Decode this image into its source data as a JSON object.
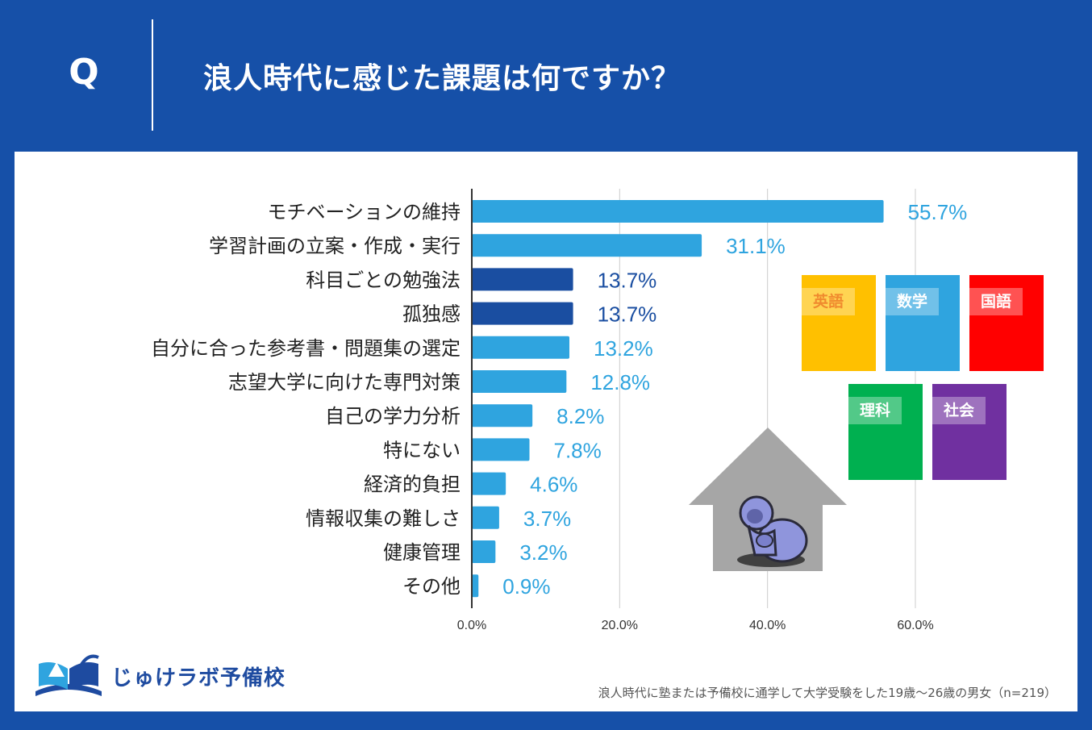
{
  "header": {
    "q_label": "Q",
    "question": "浪人時代に感じた課題は何ですか？"
  },
  "colors": {
    "background": "#1650a8",
    "bar_light": "#2fa4df",
    "bar_dark": "#1a4ea1",
    "label_light": "#2fa4df",
    "label_dark": "#1a4ea1"
  },
  "chart_data": {
    "type": "bar",
    "orientation": "horizontal",
    "categories": [
      "モチベーションの維持",
      "学習計画の立案・作成・実行",
      "科目ごとの勉強法",
      "孤独感",
      "自分に合った参考書・問題集の選定",
      "志望大学に向けた専門対策",
      "自己の学力分析",
      "特にない",
      "経済的負担",
      "情報収集の難しさ",
      "健康管理",
      "その他"
    ],
    "values": [
      55.7,
      31.1,
      13.7,
      13.7,
      13.2,
      12.8,
      8.2,
      7.8,
      4.6,
      3.7,
      3.2,
      0.9
    ],
    "highlighted": [
      false,
      false,
      true,
      true,
      false,
      false,
      false,
      false,
      false,
      false,
      false,
      false
    ],
    "value_labels": [
      "55.7%",
      "31.1%",
      "13.7%",
      "13.7%",
      "13.2%",
      "12.8%",
      "8.2%",
      "7.8%",
      "4.6%",
      "3.7%",
      "3.2%",
      "0.9%"
    ],
    "xlim": [
      0,
      60
    ],
    "xticks": [
      0,
      20,
      40,
      60
    ],
    "xtick_labels": [
      "0.0%",
      "20.0%",
      "40.0%",
      "60.0%"
    ],
    "grid": true
  },
  "illustration": {
    "books": [
      {
        "label": "英語",
        "color": "#ffc000",
        "text_color": "#f08a2e"
      },
      {
        "label": "数学",
        "color": "#2fa4df",
        "text_color": "#ffffff"
      },
      {
        "label": "国語",
        "color": "#ff0000",
        "text_color": "#ffffff"
      },
      {
        "label": "理科",
        "color": "#00b050",
        "text_color": "#ffffff"
      },
      {
        "label": "社会",
        "color": "#7030a0",
        "text_color": "#ffffff"
      }
    ],
    "house_color": "#a6a6a6"
  },
  "footer": {
    "logo_text": "じゅけラボ予備校",
    "footnote": "浪人時代に塾または予備校に通学して大学受験をした19歳～26歳の男女（n=219）"
  }
}
